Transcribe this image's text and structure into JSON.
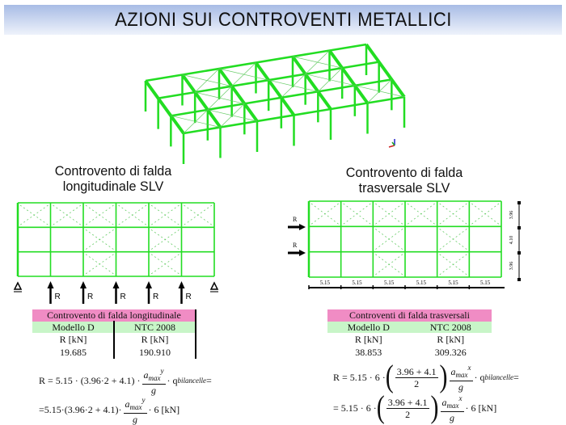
{
  "title": "AZIONI SUI CONTROVENTI METALLICI",
  "colors": {
    "frame": "#22dd22",
    "brace": "#66cc66",
    "pink": "#f08cc4",
    "green": "#c8f5c8",
    "title_top": "#a8bce5",
    "title_bottom": "#eef2fb"
  },
  "left": {
    "heading_line1": "Controvento di falda",
    "heading_line2": "longitudinale SLV",
    "load_label": "R",
    "table": {
      "title": "Controvento di falda longitudinale",
      "columns": [
        "Modello D",
        "NTC 2008"
      ],
      "unit_row": [
        "R [kN]",
        "R [kN]"
      ],
      "value_row": [
        "19.685",
        "190.910"
      ]
    },
    "formula1": {
      "lhs": "R = 5.15 · (3.96·2 + 4.1) ·",
      "num": "a",
      "num_sub": "max",
      "num_sup": "y",
      "den": "g",
      "tail": "· q",
      "tail_sub": "bilancelle",
      "end": "="
    },
    "formula2": {
      "lhs": "=5.15·(3.96·2 + 4.1)·",
      "num": "a",
      "num_sub": "max",
      "num_sup": "y",
      "den": "g",
      "tail": "· 6 [kN]"
    }
  },
  "right": {
    "heading_line1": "Controvento di falda",
    "heading_line2": "trasversale SLV",
    "load_label": "R",
    "span_labels": [
      "5.15",
      "5.15",
      "5.15",
      "5.15",
      "5.15",
      "5.15"
    ],
    "depth_labels": [
      "3.96",
      "4.10",
      "3.96"
    ],
    "table": {
      "title": "Controventi di falda trasversali",
      "columns": [
        "Modello D",
        "NTC 2008"
      ],
      "unit_row": [
        "R [kN]",
        "R [kN]"
      ],
      "value_row": [
        "38.853",
        "309.326"
      ]
    },
    "formula1": {
      "lhs": "R = 5.15 · 6 ·",
      "pnum": "3.96 + 4.1",
      "pden": "2",
      "num": "a",
      "num_sub": "max",
      "num_sup": "x",
      "den": "g",
      "tail": "· q",
      "tail_sub": "bilancelle",
      "end": "="
    },
    "formula2": {
      "lhs": "= 5.15 · 6 ·",
      "pnum": "3.96 + 4.1",
      "pden": "2",
      "num": "a",
      "num_sub": "max",
      "num_sup": "x",
      "den": "g",
      "tail": "· 6 [kN]"
    }
  }
}
